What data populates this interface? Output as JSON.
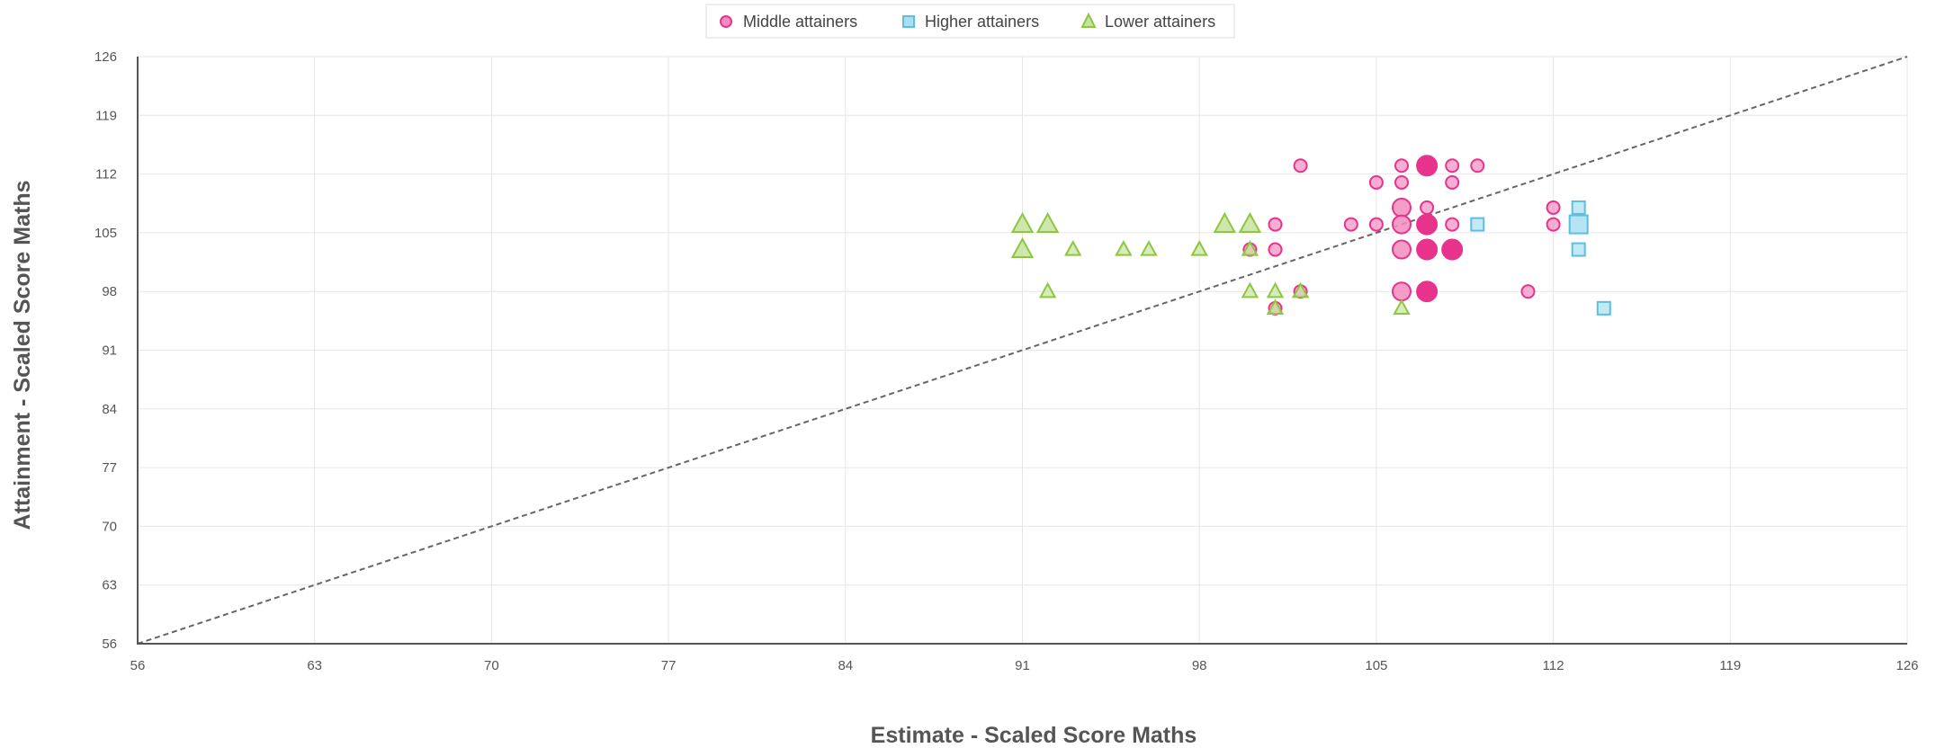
{
  "chart_data": {
    "type": "scatter",
    "xlabel": "Estimate - Scaled Score Maths",
    "ylabel": "Attainment - Scaled Score Maths",
    "xlim": [
      56,
      126
    ],
    "ylim": [
      56,
      126
    ],
    "x_ticks": [
      "56",
      "63",
      "70",
      "77",
      "84",
      "91",
      "98",
      "105",
      "112",
      "119",
      "126"
    ],
    "y_ticks": [
      "56",
      "63",
      "70",
      "77",
      "84",
      "91",
      "98",
      "105",
      "112",
      "119",
      "126"
    ],
    "grid": true,
    "legend_position": "top-center",
    "reference_line": {
      "style": "dashed",
      "color": "#666666",
      "from": [
        56,
        56
      ],
      "to": [
        126,
        126
      ]
    },
    "series": [
      {
        "name": "Middle attainers",
        "marker": "circle",
        "color": "#e8338d",
        "points": [
          {
            "x": 102,
            "y": 113,
            "size": 1
          },
          {
            "x": 105,
            "y": 111,
            "size": 1
          },
          {
            "x": 106,
            "y": 113,
            "size": 1
          },
          {
            "x": 106,
            "y": 111,
            "size": 1
          },
          {
            "x": 107,
            "y": 113,
            "size": 3
          },
          {
            "x": 108,
            "y": 113,
            "size": 1
          },
          {
            "x": 108,
            "y": 111,
            "size": 1
          },
          {
            "x": 109,
            "y": 113,
            "size": 1
          },
          {
            "x": 106,
            "y": 108,
            "size": 2
          },
          {
            "x": 107,
            "y": 108,
            "size": 1
          },
          {
            "x": 112,
            "y": 108,
            "size": 1
          },
          {
            "x": 101,
            "y": 106,
            "size": 1
          },
          {
            "x": 104,
            "y": 106,
            "size": 1
          },
          {
            "x": 105,
            "y": 106,
            "size": 1
          },
          {
            "x": 106,
            "y": 106,
            "size": 2
          },
          {
            "x": 107,
            "y": 106,
            "size": 3
          },
          {
            "x": 108,
            "y": 106,
            "size": 1
          },
          {
            "x": 112,
            "y": 106,
            "size": 1
          },
          {
            "x": 100,
            "y": 103,
            "size": 1
          },
          {
            "x": 101,
            "y": 103,
            "size": 1
          },
          {
            "x": 106,
            "y": 103,
            "size": 2
          },
          {
            "x": 107,
            "y": 103,
            "size": 3
          },
          {
            "x": 108,
            "y": 103,
            "size": 3
          },
          {
            "x": 102,
            "y": 98,
            "size": 1
          },
          {
            "x": 106,
            "y": 98,
            "size": 2
          },
          {
            "x": 107,
            "y": 98,
            "size": 3
          },
          {
            "x": 111,
            "y": 98,
            "size": 1
          },
          {
            "x": 101,
            "y": 96,
            "size": 1
          }
        ]
      },
      {
        "name": "Higher attainers",
        "marker": "square",
        "color": "#5bc0de",
        "points": [
          {
            "x": 113,
            "y": 108,
            "size": 1
          },
          {
            "x": 109,
            "y": 106,
            "size": 1
          },
          {
            "x": 113,
            "y": 106,
            "size": 2
          },
          {
            "x": 113,
            "y": 103,
            "size": 1
          },
          {
            "x": 114,
            "y": 96,
            "size": 1
          }
        ]
      },
      {
        "name": "Lower attainers",
        "marker": "triangle",
        "color": "#8dc63f",
        "points": [
          {
            "x": 91,
            "y": 106,
            "size": 2
          },
          {
            "x": 92,
            "y": 106,
            "size": 2
          },
          {
            "x": 99,
            "y": 106,
            "size": 2
          },
          {
            "x": 100,
            "y": 106,
            "size": 2
          },
          {
            "x": 91,
            "y": 103,
            "size": 2
          },
          {
            "x": 93,
            "y": 103,
            "size": 1
          },
          {
            "x": 95,
            "y": 103,
            "size": 1
          },
          {
            "x": 96,
            "y": 103,
            "size": 1
          },
          {
            "x": 98,
            "y": 103,
            "size": 1
          },
          {
            "x": 100,
            "y": 103,
            "size": 1
          },
          {
            "x": 92,
            "y": 98,
            "size": 1
          },
          {
            "x": 100,
            "y": 98,
            "size": 1
          },
          {
            "x": 101,
            "y": 98,
            "size": 1
          },
          {
            "x": 102,
            "y": 98,
            "size": 1
          },
          {
            "x": 101,
            "y": 96,
            "size": 1
          },
          {
            "x": 106,
            "y": 96,
            "size": 1
          }
        ]
      }
    ]
  }
}
